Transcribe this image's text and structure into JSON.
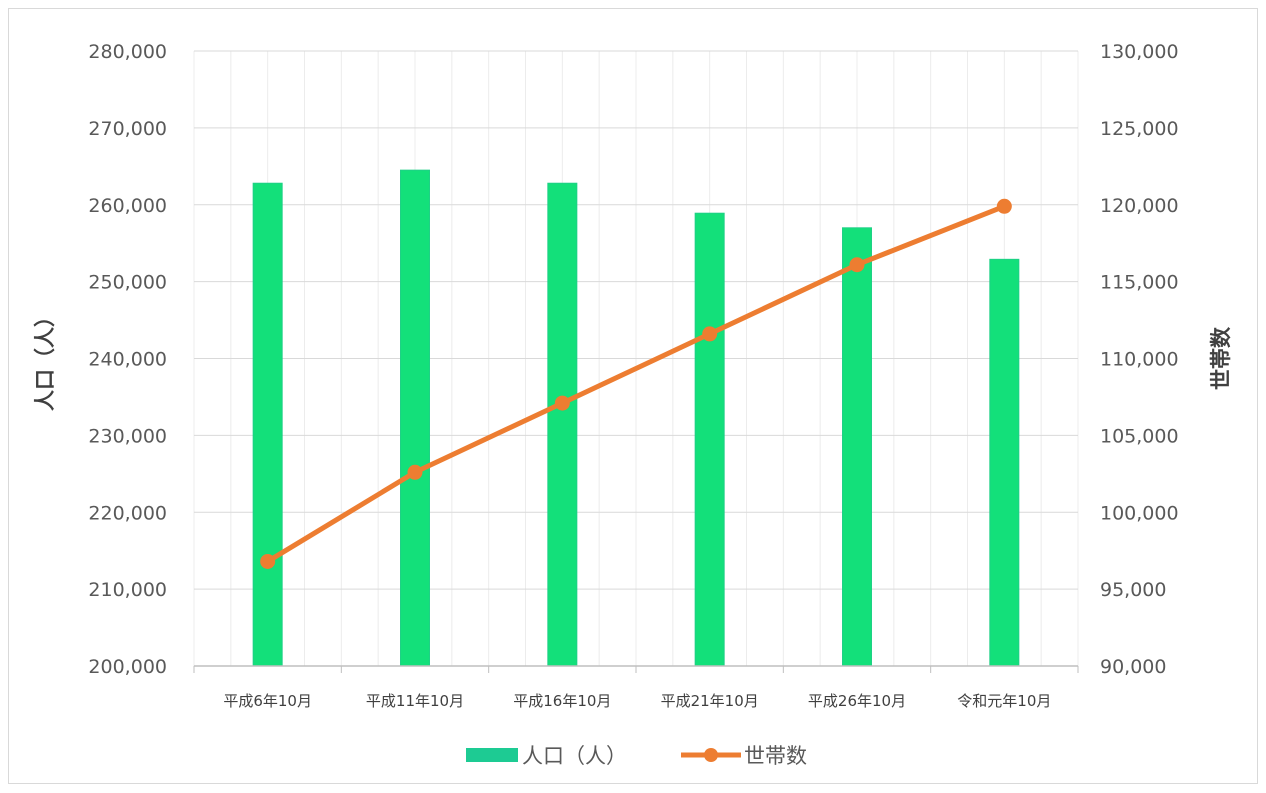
{
  "chart_data": {
    "type": "bar",
    "categories": [
      "平成6年10月",
      "平成11年10月",
      "平成16年10月",
      "平成21年10月",
      "平成26年10月",
      "令和元年10月"
    ],
    "series": [
      {
        "name": "人口（人）",
        "type": "bar",
        "axis": "left",
        "color": "#13e07a",
        "values": [
          262800,
          264500,
          262800,
          258900,
          257000,
          252900
        ]
      },
      {
        "name": "世帯数",
        "type": "line",
        "axis": "right",
        "color": "#ed7d31",
        "values": [
          96800,
          102600,
          107100,
          111600,
          116100,
          119900
        ]
      }
    ],
    "ylabel": "人口（人）",
    "y2label": "世帯数",
    "ylim": [
      200000,
      280000
    ],
    "y2lim": [
      90000,
      130000
    ],
    "yticks": [
      "200,000",
      "210,000",
      "220,000",
      "230,000",
      "240,000",
      "250,000",
      "260,000",
      "270,000",
      "280,000"
    ],
    "y2ticks": [
      "90,000",
      "95,000",
      "100,000",
      "105,000",
      "110,000",
      "115,000",
      "120,000",
      "125,000",
      "130,000"
    ],
    "grid": true,
    "legend": "bottom"
  }
}
